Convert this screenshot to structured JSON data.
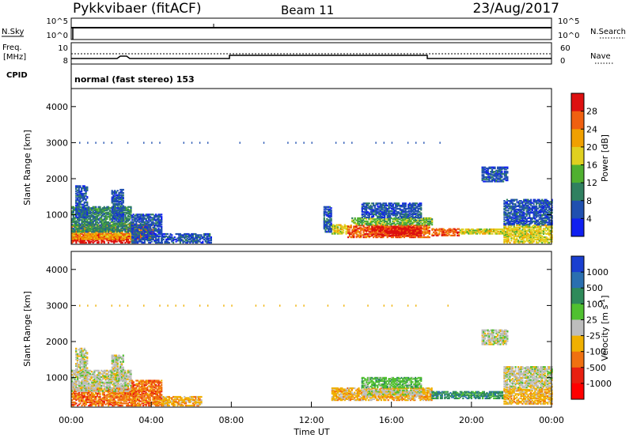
{
  "header": {
    "station": "Pykkvibaer (fitACF)",
    "beam": "Beam 11",
    "date": "23/Aug/2017"
  },
  "strip": {
    "nsky_label": "N.Sky",
    "nsky_ticks": [
      "10^5",
      "10^0"
    ],
    "nsearch_label": "N.Search",
    "nsearch_ticks": [
      "10^5",
      "10^0"
    ],
    "freq_label_1": "Freq.",
    "freq_label_2": "[MHz]",
    "freq_ticks": [
      "10",
      "8"
    ],
    "nave_label": "Nave",
    "nave_ticks": [
      "60",
      "0"
    ],
    "cpid_label": "CPID",
    "cpid_value": "normal (fast stereo) 153"
  },
  "chart_data": [
    {
      "type": "heatmap",
      "name": "power",
      "ylabel": "Slant Range [km]",
      "yticks": [
        "4000",
        "3000",
        "2000",
        "1000"
      ],
      "ylim": [
        180,
        4500
      ],
      "xlim": [
        0,
        24
      ],
      "colorbar": {
        "label": "Power [dB]",
        "tick_labels": [
          "28",
          "24",
          "20",
          "16",
          "12",
          "8",
          "4"
        ],
        "colors": [
          "#dd1010",
          "#f06010",
          "#f0a000",
          "#e0d020",
          "#50b030",
          "#308060",
          "#2050b0",
          "#1020f0"
        ]
      },
      "regions": [
        {
          "t0": 0.0,
          "t1": 3.2,
          "r0": 200,
          "r1": 450,
          "level": 0
        },
        {
          "t0": 0.0,
          "t1": 3.5,
          "r0": 300,
          "r1": 700,
          "level": 2
        },
        {
          "t0": 0.0,
          "t1": 3.0,
          "r0": 500,
          "r1": 1200,
          "level": 5
        },
        {
          "t0": 0.2,
          "t1": 0.8,
          "r0": 900,
          "r1": 1800,
          "level": 6
        },
        {
          "t0": 2.0,
          "t1": 2.6,
          "r0": 800,
          "r1": 1700,
          "level": 6
        },
        {
          "t0": 3.3,
          "t1": 4.1,
          "r0": 300,
          "r1": 700,
          "level": 1
        },
        {
          "t0": 3.0,
          "t1": 4.5,
          "r0": 200,
          "r1": 1000,
          "level": 6
        },
        {
          "t0": 4.5,
          "t1": 7.0,
          "r0": 200,
          "r1": 450,
          "level": 6
        },
        {
          "t0": 13.0,
          "t1": 13.8,
          "r0": 450,
          "r1": 700,
          "level": 3
        },
        {
          "t0": 13.8,
          "t1": 17.9,
          "r0": 350,
          "r1": 700,
          "level": 1
        },
        {
          "t0": 15.0,
          "t1": 17.5,
          "r0": 400,
          "r1": 650,
          "level": 0
        },
        {
          "t0": 14.0,
          "t1": 18.0,
          "r0": 700,
          "r1": 900,
          "level": 4
        },
        {
          "t0": 14.5,
          "t1": 17.5,
          "r0": 900,
          "r1": 1300,
          "level": 6
        },
        {
          "t0": 18.0,
          "t1": 19.4,
          "r0": 400,
          "r1": 600,
          "level": 1
        },
        {
          "t0": 19.4,
          "t1": 21.6,
          "r0": 450,
          "r1": 600,
          "level": 3
        },
        {
          "t0": 21.6,
          "t1": 24.0,
          "r0": 200,
          "r1": 700,
          "level": 3
        },
        {
          "t0": 21.6,
          "t1": 24.0,
          "r0": 700,
          "r1": 1400,
          "level": 6
        },
        {
          "t0": 20.5,
          "t1": 21.8,
          "r0": 1900,
          "r1": 2300,
          "level": 6
        },
        {
          "t0": 12.6,
          "t1": 13.0,
          "r0": 500,
          "r1": 1200,
          "level": 6
        }
      ],
      "line_3000": {
        "r": 3000,
        "t0": 0.4,
        "t1": 19.0,
        "level": 6
      }
    },
    {
      "type": "heatmap",
      "name": "velocity",
      "ylabel": "Slant Range [km]",
      "yticks": [
        "4000",
        "3000",
        "2000",
        "1000"
      ],
      "ylim": [
        180,
        4500
      ],
      "xlim": [
        0,
        24
      ],
      "xticks": [
        "00:00",
        "04:00",
        "08:00",
        "12:00",
        "16:00",
        "20:00",
        "00:00"
      ],
      "xlabel": "Time UT",
      "colorbar": {
        "label": "Velocity [m s",
        "label_sup": "-1",
        "label_end": "]",
        "tick_labels": [
          "1000",
          "500",
          "100",
          "25",
          "-25",
          "-100",
          "-500",
          "-1000"
        ],
        "colors": [
          "#1a3fd0",
          "#2a6fb0",
          "#2e8a5a",
          "#50c030",
          "#bdbdbd",
          "#f0b000",
          "#f07010",
          "#e82010",
          "#ff0000"
        ]
      },
      "regions": [
        {
          "t0": 0.0,
          "t1": 3.2,
          "r0": 200,
          "r1": 700,
          "level": 6
        },
        {
          "t0": 0.0,
          "t1": 3.0,
          "r0": 600,
          "r1": 1200,
          "level": 4
        },
        {
          "t0": 0.2,
          "t1": 0.8,
          "r0": 1000,
          "r1": 1800,
          "level": 4
        },
        {
          "t0": 2.0,
          "t1": 2.6,
          "r0": 900,
          "r1": 1600,
          "level": 4
        },
        {
          "t0": 3.0,
          "t1": 4.5,
          "r0": 200,
          "r1": 900,
          "level": 6
        },
        {
          "t0": 4.5,
          "t1": 6.5,
          "r0": 200,
          "r1": 450,
          "level": 5
        },
        {
          "t0": 13.0,
          "t1": 18.0,
          "r0": 350,
          "r1": 700,
          "level": 5
        },
        {
          "t0": 14.5,
          "t1": 17.5,
          "r0": 700,
          "r1": 1000,
          "level": 3
        },
        {
          "t0": 14.5,
          "t1": 17.5,
          "r0": 500,
          "r1": 650,
          "level": 4
        },
        {
          "t0": 18.0,
          "t1": 21.6,
          "r0": 400,
          "r1": 600,
          "level": 2
        },
        {
          "t0": 21.6,
          "t1": 24.0,
          "r0": 250,
          "r1": 700,
          "level": 5
        },
        {
          "t0": 21.6,
          "t1": 24.0,
          "r0": 700,
          "r1": 1300,
          "level": 4
        },
        {
          "t0": 20.5,
          "t1": 21.8,
          "r0": 1900,
          "r1": 2300,
          "level": 4
        }
      ],
      "line_3000": {
        "r": 3000,
        "t0": 0.4,
        "t1": 19.0,
        "level": 5
      }
    }
  ]
}
